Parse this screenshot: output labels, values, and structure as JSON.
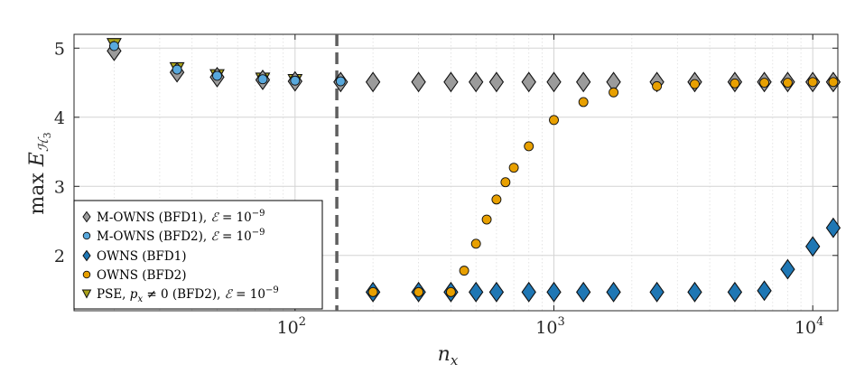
{
  "chart_data": {
    "type": "scatter",
    "xlabel": {
      "base": "n",
      "sub": "x"
    },
    "ylabel": {
      "prefix": "max ",
      "base": "E",
      "sub1": "ℋ",
      "sub2": "3"
    },
    "xscale": "log",
    "xlim": [
      14,
      12500
    ],
    "ylim": [
      1.2,
      5.2
    ],
    "grid": true,
    "minor_grid": true,
    "x_ticks": [
      {
        "value": 100,
        "base": "10",
        "exp": "2"
      },
      {
        "value": 1000,
        "base": "10",
        "exp": "3"
      },
      {
        "value": 10000,
        "base": "10",
        "exp": "4"
      }
    ],
    "y_ticks": [
      "2",
      "3",
      "4",
      "5"
    ],
    "vertical_reference_line": {
      "x": 145,
      "style": "dashed",
      "color": "#5f5f5f"
    },
    "legend_position": "lower-left",
    "series": [
      {
        "name": "M-OWNS (BFD1), ℰ = 10^−9",
        "legend": {
          "main": "M-OWNS (BFD1), ",
          "eps": "ℰ",
          "eq": " = 10",
          "exp": "−9"
        },
        "marker": "diamond",
        "color": "#9b9b9b",
        "x": [
          20,
          35,
          50,
          75,
          100,
          150,
          200,
          300,
          400,
          500,
          600,
          800,
          1000,
          1300,
          1700,
          2500,
          3500,
          5000,
          6500,
          8000,
          10000,
          12000
        ],
        "y": [
          4.96,
          4.65,
          4.58,
          4.54,
          4.52,
          4.51,
          4.51,
          4.51,
          4.51,
          4.51,
          4.51,
          4.51,
          4.51,
          4.51,
          4.51,
          4.51,
          4.51,
          4.51,
          4.51,
          4.51,
          4.51,
          4.51
        ]
      },
      {
        "name": "M-OWNS (BFD2), ℰ = 10^−9",
        "legend": {
          "main": "M-OWNS (BFD2), ",
          "eps": "ℰ",
          "eq": " = 10",
          "exp": "−9"
        },
        "marker": "circle",
        "color": "#58a8dc",
        "x": [
          20,
          35,
          50,
          75,
          100,
          150
        ],
        "y": [
          5.03,
          4.69,
          4.6,
          4.55,
          4.53,
          4.52
        ]
      },
      {
        "name": "OWNS (BFD1)",
        "legend": {
          "main": "OWNS (BFD1)"
        },
        "marker": "diamond",
        "color": "#1f77b4",
        "x": [
          200,
          300,
          400,
          500,
          600,
          800,
          1000,
          1300,
          1700,
          2500,
          3500,
          5000,
          6500,
          8000,
          10000,
          12000
        ],
        "y": [
          1.47,
          1.47,
          1.47,
          1.47,
          1.47,
          1.47,
          1.47,
          1.47,
          1.47,
          1.47,
          1.47,
          1.47,
          1.49,
          1.8,
          2.13,
          2.4
        ]
      },
      {
        "name": "OWNS (BFD2)",
        "legend": {
          "main": "OWNS (BFD2)"
        },
        "marker": "circle",
        "color": "#e8a000",
        "x": [
          200,
          300,
          400,
          450,
          500,
          550,
          600,
          650,
          700,
          800,
          1000,
          1300,
          1700,
          2500,
          3500,
          5000,
          6500,
          8000,
          10000,
          12000
        ],
        "y": [
          1.47,
          1.47,
          1.47,
          1.78,
          2.17,
          2.52,
          2.81,
          3.06,
          3.27,
          3.58,
          3.96,
          4.22,
          4.36,
          4.45,
          4.48,
          4.49,
          4.5,
          4.5,
          4.51,
          4.51
        ]
      },
      {
        "name": "PSE, p_x ≠ 0 (BFD2), ℰ = 10^−9",
        "legend": {
          "main": "PSE, ",
          "p": "p",
          "psub": "x",
          "neq": " ≠ 0 (BFD2), ",
          "eps": "ℰ",
          "eq": " = 10",
          "exp": "−9"
        },
        "marker": "triangle-down",
        "color": "#a9a21a",
        "x": [
          20,
          35,
          50,
          75,
          100
        ],
        "y": [
          5.06,
          4.71,
          4.61,
          4.56,
          4.54
        ]
      }
    ]
  }
}
